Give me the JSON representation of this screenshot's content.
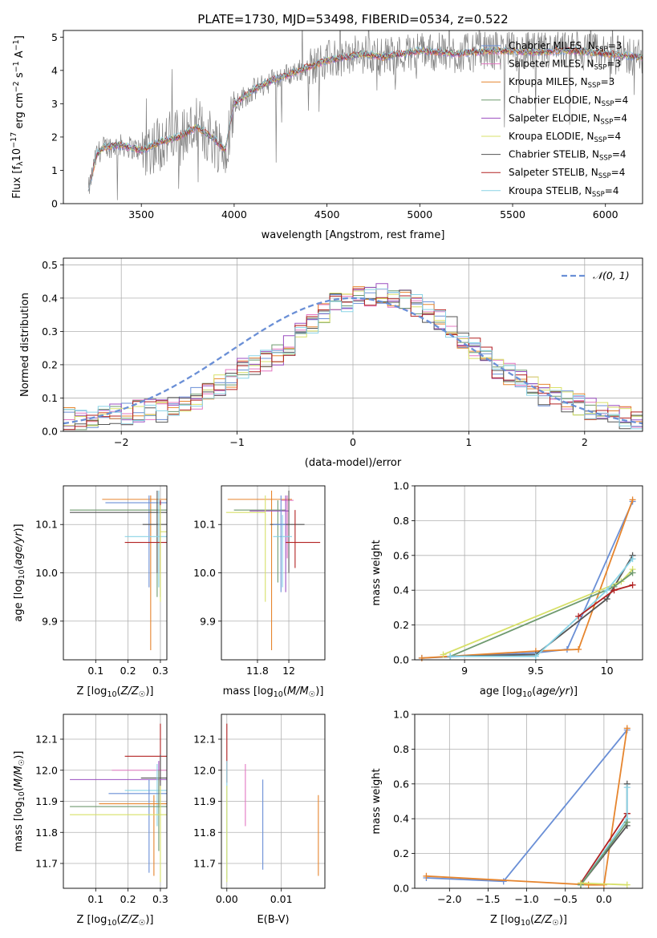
{
  "figure_title": "PLATE=1730, MJD=53498, FIBERID=0534, z=0.522",
  "colors": {
    "model_palette": [
      "#1f77b4",
      "#e377c2",
      "#ff7f0e",
      "#2ca02c",
      "#9467bd",
      "#bcbd22",
      "#555555",
      "#d62728",
      "#17becf"
    ],
    "data_line": "#808080",
    "grid": "#b0b0b0"
  },
  "chart_data": [
    {
      "id": "spectrum",
      "type": "line",
      "xlabel": "wavelength [Angstrom, rest frame]",
      "ylabel": "Flux [f",
      "ylabel_full": "Flux [f_λ 10^-17 erg cm^-2 s^-1 A^-1]",
      "xlim": [
        3080,
        6200
      ],
      "ylim": [
        0,
        5.2
      ],
      "xticks": [
        3500,
        4000,
        4500,
        5000,
        5500,
        6000
      ],
      "yticks": [
        0,
        1,
        2,
        3,
        4,
        5
      ],
      "grid": false,
      "legend_position": "top-right",
      "legend": [
        {
          "label": "Chabrier MILES, N",
          "sub": "SSP",
          "tail": "=3",
          "color": "#6a8fd6"
        },
        {
          "label": "Salpeter MILES, N",
          "sub": "SSP",
          "tail": "=3",
          "color": "#e377c2"
        },
        {
          "label": "Kroupa MILES, N",
          "sub": "SSP",
          "tail": "=3",
          "color": "#e6852e"
        },
        {
          "label": "Chabrier ELODIE, N",
          "sub": "SSP",
          "tail": "=4",
          "color": "#6f9a6f"
        },
        {
          "label": "Salpeter ELODIE, N",
          "sub": "SSP",
          "tail": "=4",
          "color": "#9b4fc0"
        },
        {
          "label": "Kroupa ELODIE, N",
          "sub": "SSP",
          "tail": "=4",
          "color": "#d7e069"
        },
        {
          "label": "Chabrier STELIB, N",
          "sub": "SSP",
          "tail": "=4",
          "color": "#555555"
        },
        {
          "label": "Salpeter STELIB, N",
          "sub": "SSP",
          "tail": "=4",
          "color": "#b22222"
        },
        {
          "label": "Kroupa STELIB, N",
          "sub": "SSP",
          "tail": "=4",
          "color": "#89d3e6"
        }
      ],
      "model_continuum": {
        "x": [
          3200,
          3260,
          3300,
          3400,
          3500,
          3600,
          3700,
          3800,
          3900,
          3950,
          4000,
          4100,
          4200,
          4300,
          4400,
          4500,
          4600,
          4700,
          4800,
          4900,
          5000,
          5200,
          5400,
          5600,
          5800,
          6000,
          6200
        ],
        "y": [
          0.0,
          1.5,
          1.7,
          1.75,
          1.6,
          1.85,
          2.0,
          2.3,
          1.9,
          1.6,
          3.0,
          3.4,
          3.7,
          3.9,
          4.1,
          4.3,
          4.4,
          4.5,
          4.4,
          4.5,
          4.6,
          4.5,
          4.6,
          4.55,
          4.6,
          4.5,
          4.4
        ]
      }
    },
    {
      "id": "residual_histogram",
      "type": "line",
      "xlabel": "(data-model)/error",
      "ylabel": "Normed distribution",
      "xlim": [
        -2.5,
        2.5
      ],
      "ylim": [
        0,
        0.52
      ],
      "xticks": [
        -2,
        -1,
        0,
        1,
        2
      ],
      "xtick_labels": [
        "−2",
        "−1",
        "0",
        "1",
        "2"
      ],
      "yticks": [
        0.0,
        0.1,
        0.2,
        0.3,
        0.4,
        0.5
      ],
      "grid": true,
      "legend_position": "top-right",
      "reference_label": "𝒩(0, 1)",
      "reference_color": "#6a8fd6",
      "bin_edges_start": -2.5,
      "bin_width": 0.1,
      "base_values": [
        0.04,
        0.03,
        0.03,
        0.04,
        0.05,
        0.05,
        0.06,
        0.07,
        0.06,
        0.07,
        0.08,
        0.1,
        0.12,
        0.14,
        0.16,
        0.19,
        0.2,
        0.21,
        0.23,
        0.26,
        0.3,
        0.33,
        0.36,
        0.38,
        0.39,
        0.4,
        0.41,
        0.41,
        0.4,
        0.39,
        0.38,
        0.36,
        0.34,
        0.31,
        0.28,
        0.25,
        0.22,
        0.19,
        0.17,
        0.15,
        0.13,
        0.11,
        0.1,
        0.09,
        0.08,
        0.07,
        0.06,
        0.05,
        0.04,
        0.03
      ]
    },
    {
      "id": "age_vs_Z",
      "type": "scatter",
      "xlabel": "Z [log",
      "xlabel_full": "Z [log10(Z/Z☉)]",
      "ylabel": "age  [log",
      "ylabel_full": "age [log10(age/yr)]",
      "xlim": [
        0.0,
        0.32
      ],
      "ylim": [
        9.82,
        10.18
      ],
      "xticks": [
        0.1,
        0.2,
        0.3
      ],
      "yticks": [
        9.9,
        10.0,
        10.1
      ],
      "grid": true
    },
    {
      "id": "age_vs_mass",
      "type": "scatter",
      "xlabel": "mass [log",
      "xlabel_full": "mass [log10(M/M☉)]",
      "ylabel": "",
      "xlim": [
        11.57,
        12.23
      ],
      "ylim": [
        9.82,
        10.18
      ],
      "xticks": [
        11.8,
        12.0
      ],
      "yticks": [
        9.9,
        10.0,
        10.1
      ],
      "grid": true
    },
    {
      "id": "massweight_vs_age",
      "type": "line",
      "xlabel": "age  [log",
      "xlabel_full": "age [log10(age/yr)]",
      "ylabel": "mass weight",
      "xlim": [
        8.65,
        10.25
      ],
      "ylim": [
        0.0,
        1.0
      ],
      "xticks": [
        9.0,
        9.5,
        10.0
      ],
      "yticks": [
        0.0,
        0.2,
        0.4,
        0.6,
        0.8,
        1.0
      ],
      "grid": true,
      "series": [
        {
          "color": "#6a8fd6",
          "x": [
            8.7,
            9.5,
            9.72,
            10.18
          ],
          "y": [
            0.01,
            0.04,
            0.06,
            0.91
          ]
        },
        {
          "color": "#e6852e",
          "x": [
            8.7,
            9.5,
            9.8,
            10.18
          ],
          "y": [
            0.01,
            0.05,
            0.06,
            0.92
          ]
        },
        {
          "color": "#555555",
          "x": [
            8.9,
            9.5,
            10.0,
            10.18
          ],
          "y": [
            0.02,
            0.03,
            0.35,
            0.6
          ]
        },
        {
          "color": "#d7e069",
          "x": [
            8.85,
            10.1,
            10.18
          ],
          "y": [
            0.03,
            0.45,
            0.52
          ]
        },
        {
          "color": "#6f9a6f",
          "x": [
            8.9,
            10.05,
            10.18
          ],
          "y": [
            0.02,
            0.42,
            0.5
          ]
        },
        {
          "color": "#89d3e6",
          "x": [
            8.9,
            9.5,
            10.0,
            10.18
          ],
          "y": [
            0.02,
            0.02,
            0.4,
            0.58
          ]
        },
        {
          "color": "#b22222",
          "x": [
            9.8,
            10.05,
            10.18
          ],
          "y": [
            0.25,
            0.4,
            0.43
          ]
        }
      ]
    },
    {
      "id": "mass_vs_Z",
      "type": "scatter",
      "xlabel": "Z [log",
      "xlabel_full": "Z [log10(Z/Z☉)]",
      "ylabel": "mass [log",
      "ylabel_full": "mass [log10(M/M☉)]",
      "xlim": [
        0.0,
        0.32
      ],
      "ylim": [
        11.62,
        12.18
      ],
      "xticks": [
        0.1,
        0.2,
        0.3
      ],
      "yticks": [
        11.7,
        11.8,
        11.9,
        12.0,
        12.1
      ],
      "grid": true
    },
    {
      "id": "mass_vs_ebv",
      "type": "scatter",
      "xlabel": "E(B-V)",
      "ylabel": "",
      "xlim": [
        -0.001,
        0.018
      ],
      "ylim": [
        11.62,
        12.18
      ],
      "xticks": [
        0.0,
        0.01
      ],
      "xtick_labels": [
        "0.00",
        "0.01"
      ],
      "yticks": [
        11.7,
        11.8,
        11.9,
        12.0,
        12.1
      ],
      "grid": true,
      "vlines": [
        {
          "color": "#b22222",
          "x": 0.0,
          "y0": 11.96,
          "y1": 12.15
        },
        {
          "color": "#89d3e6",
          "x": 0.0,
          "y0": 11.65,
          "y1": 12.03
        },
        {
          "color": "#d7e069",
          "x": 0.0,
          "y0": 11.64,
          "y1": 11.95
        },
        {
          "color": "#e377c2",
          "x": 0.0034,
          "y0": 11.82,
          "y1": 12.02
        },
        {
          "color": "#6a8fd6",
          "x": 0.0066,
          "y0": 11.68,
          "y1": 11.97
        },
        {
          "color": "#e6852e",
          "x": 0.0168,
          "y0": 11.66,
          "y1": 11.92
        }
      ]
    },
    {
      "id": "massweight_vs_Z",
      "type": "line",
      "xlabel": "Z [log",
      "xlabel_full": "Z [log10(Z/Z☉)]",
      "ylabel": "mass weight",
      "xlim": [
        -2.45,
        0.5
      ],
      "ylim": [
        0.0,
        1.0
      ],
      "xticks": [
        -2.0,
        -1.5,
        -1.0,
        -0.5,
        0.0
      ],
      "xtick_labels": [
        "−2.0",
        "−1.5",
        "−1.0",
        "−0.5",
        "0.0"
      ],
      "yticks": [
        0.0,
        0.2,
        0.4,
        0.6,
        0.8,
        1.0
      ],
      "grid": true,
      "series": [
        {
          "color": "#6a8fd6",
          "x": [
            -2.3,
            -1.3,
            0.3
          ],
          "y": [
            0.06,
            0.04,
            0.91
          ]
        },
        {
          "color": "#e6852e",
          "x": [
            -2.3,
            -0.2,
            0.0,
            0.3
          ],
          "y": [
            0.07,
            0.02,
            0.02,
            0.92
          ]
        },
        {
          "color": "#555555",
          "x": [
            -0.3,
            0.3,
            0.3
          ],
          "y": [
            0.02,
            0.36,
            0.6
          ]
        },
        {
          "color": "#b22222",
          "x": [
            -0.3,
            0.3,
            0.3
          ],
          "y": [
            0.03,
            0.43,
            0.43
          ]
        },
        {
          "color": "#89d3e6",
          "x": [
            -0.3,
            0.3,
            0.3
          ],
          "y": [
            0.02,
            0.4,
            0.58
          ]
        },
        {
          "color": "#6f9a6f",
          "x": [
            -0.3,
            0.3
          ],
          "y": [
            0.02,
            0.38
          ]
        },
        {
          "color": "#d7e069",
          "x": [
            -0.3,
            0.3
          ],
          "y": [
            0.03,
            0.02
          ]
        }
      ]
    }
  ]
}
